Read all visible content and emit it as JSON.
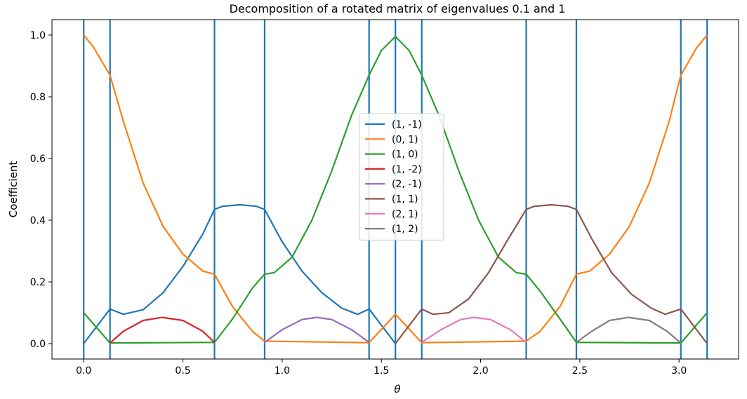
{
  "chart_data": {
    "type": "line",
    "title": "Decomposition of a rotated matrix of eigenvalues 0.1 and 1",
    "xlabel": "θ",
    "ylabel": "Coefficient",
    "xlim": [
      -0.16,
      3.3
    ],
    "ylim": [
      -0.05,
      1.05
    ],
    "xticks": [
      0.0,
      0.5,
      1.0,
      1.5,
      2.0,
      2.5,
      3.0
    ],
    "xtick_labels": [
      "0.0",
      "0.5",
      "1.0",
      "1.5",
      "2.0",
      "2.5",
      "3.0"
    ],
    "yticks": [
      0.0,
      0.2,
      0.4,
      0.6,
      0.8,
      1.0
    ],
    "ytick_labels": [
      "0.0",
      "0.2",
      "0.4",
      "0.6",
      "0.8",
      "1.0"
    ],
    "grid": false,
    "legend_position": "center",
    "vlines": {
      "color": "#1f77b4",
      "x": [
        0.0,
        0.1326,
        0.659,
        0.9117,
        1.438,
        1.5708,
        1.7036,
        2.2299,
        2.4826,
        3.009,
        3.1416
      ]
    },
    "series": [
      {
        "name": "(1, -1)",
        "color": "#1f77b4",
        "segments": [
          [
            [
              0.0,
              0.0
            ],
            [
              0.1326,
              0.112
            ],
            [
              0.2,
              0.095
            ],
            [
              0.3,
              0.11
            ],
            [
              0.4,
              0.165
            ],
            [
              0.5,
              0.25
            ],
            [
              0.6,
              0.355
            ],
            [
              0.659,
              0.435
            ],
            [
              0.7,
              0.445
            ],
            [
              0.785,
              0.45
            ],
            [
              0.87,
              0.445
            ],
            [
              0.9117,
              0.435
            ],
            [
              1.0,
              0.33
            ],
            [
              1.1,
              0.235
            ],
            [
              1.2,
              0.165
            ],
            [
              1.3,
              0.115
            ],
            [
              1.38,
              0.095
            ],
            [
              1.438,
              0.112
            ],
            [
              1.5708,
              0.0
            ]
          ]
        ]
      },
      {
        "name": "(0, 1)",
        "color": "#ff7f0e",
        "segments": [
          [
            [
              0.0,
              1.0
            ],
            [
              0.05,
              0.96
            ],
            [
              0.1326,
              0.87
            ],
            [
              0.2,
              0.72
            ],
            [
              0.3,
              0.52
            ],
            [
              0.4,
              0.38
            ],
            [
              0.5,
              0.29
            ],
            [
              0.6,
              0.235
            ],
            [
              0.659,
              0.225
            ],
            [
              0.75,
              0.12
            ],
            [
              0.85,
              0.04
            ],
            [
              0.9117,
              0.008
            ],
            [
              1.438,
              0.003
            ],
            [
              1.5708,
              0.095
            ],
            [
              1.7036,
              0.003
            ],
            [
              2.2299,
              0.008
            ],
            [
              2.3,
              0.04
            ],
            [
              2.4,
              0.12
            ],
            [
              2.4826,
              0.225
            ],
            [
              2.55,
              0.235
            ],
            [
              2.65,
              0.29
            ],
            [
              2.75,
              0.38
            ],
            [
              2.85,
              0.52
            ],
            [
              2.95,
              0.72
            ],
            [
              3.009,
              0.87
            ],
            [
              3.09,
              0.96
            ],
            [
              3.1416,
              1.0
            ]
          ]
        ]
      },
      {
        "name": "(1, 0)",
        "color": "#2ca02c",
        "segments": [
          [
            [
              0.0,
              0.1
            ],
            [
              0.1326,
              0.002
            ],
            [
              0.659,
              0.004
            ],
            [
              0.75,
              0.08
            ],
            [
              0.85,
              0.18
            ],
            [
              0.9117,
              0.225
            ],
            [
              0.96,
              0.23
            ],
            [
              1.05,
              0.28
            ],
            [
              1.15,
              0.4
            ],
            [
              1.25,
              0.56
            ],
            [
              1.35,
              0.74
            ],
            [
              1.438,
              0.87
            ],
            [
              1.5,
              0.95
            ],
            [
              1.5708,
              0.995
            ],
            [
              1.64,
              0.95
            ],
            [
              1.7036,
              0.87
            ],
            [
              1.79,
              0.74
            ],
            [
              1.89,
              0.56
            ],
            [
              1.99,
              0.4
            ],
            [
              2.09,
              0.28
            ],
            [
              2.18,
              0.23
            ],
            [
              2.2299,
              0.225
            ],
            [
              2.3,
              0.17
            ],
            [
              2.4,
              0.08
            ],
            [
              2.4826,
              0.004
            ],
            [
              3.009,
              0.002
            ],
            [
              3.1416,
              0.1
            ]
          ]
        ]
      },
      {
        "name": "(1, -2)",
        "color": "#d62728",
        "segments": [
          [
            [
              0.1326,
              0.002
            ],
            [
              0.2,
              0.04
            ],
            [
              0.3,
              0.075
            ],
            [
              0.3958,
              0.085
            ],
            [
              0.5,
              0.075
            ],
            [
              0.6,
              0.04
            ],
            [
              0.659,
              0.004
            ]
          ]
        ]
      },
      {
        "name": "(2, -1)",
        "color": "#9467bd",
        "segments": [
          [
            [
              0.9117,
              0.004
            ],
            [
              1.0,
              0.045
            ],
            [
              1.1,
              0.078
            ],
            [
              1.175,
              0.085
            ],
            [
              1.25,
              0.078
            ],
            [
              1.35,
              0.045
            ],
            [
              1.438,
              0.004
            ]
          ]
        ]
      },
      {
        "name": "(1, 1)",
        "color": "#8c564b",
        "segments": [
          [
            [
              1.5708,
              0.0
            ],
            [
              1.7036,
              0.112
            ],
            [
              1.76,
              0.095
            ],
            [
              1.84,
              0.1
            ],
            [
              1.94,
              0.145
            ],
            [
              2.04,
              0.23
            ],
            [
              2.14,
              0.34
            ],
            [
              2.2299,
              0.435
            ],
            [
              2.27,
              0.445
            ],
            [
              2.356,
              0.45
            ],
            [
              2.44,
              0.445
            ],
            [
              2.4826,
              0.435
            ],
            [
              2.56,
              0.34
            ],
            [
              2.66,
              0.23
            ],
            [
              2.76,
              0.16
            ],
            [
              2.86,
              0.115
            ],
            [
              2.93,
              0.095
            ],
            [
              3.009,
              0.112
            ],
            [
              3.1416,
              0.0
            ]
          ]
        ]
      },
      {
        "name": "(2, 1)",
        "color": "#e377c2",
        "segments": [
          [
            [
              1.7036,
              0.004
            ],
            [
              1.8,
              0.045
            ],
            [
              1.9,
              0.078
            ],
            [
              1.9666,
              0.085
            ],
            [
              2.05,
              0.078
            ],
            [
              2.15,
              0.045
            ],
            [
              2.2299,
              0.004
            ]
          ]
        ]
      },
      {
        "name": "(1, 2)",
        "color": "#7f7f7f",
        "segments": [
          [
            [
              2.4826,
              0.004
            ],
            [
              2.56,
              0.04
            ],
            [
              2.65,
              0.075
            ],
            [
              2.7458,
              0.085
            ],
            [
              2.85,
              0.075
            ],
            [
              2.94,
              0.04
            ],
            [
              3.009,
              0.002
            ]
          ]
        ]
      }
    ]
  }
}
